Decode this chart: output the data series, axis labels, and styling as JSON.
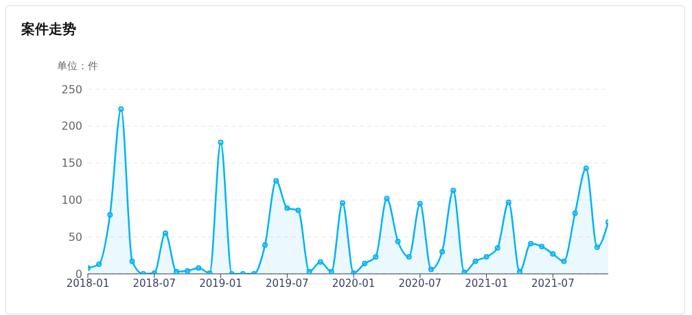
{
  "chart_data": {
    "type": "area",
    "title": "案件走势",
    "ylabel": "单位：件",
    "x": [
      "2018-01",
      "2018-02",
      "2018-03",
      "2018-04",
      "2018-05",
      "2018-06",
      "2018-07",
      "2018-08",
      "2018-09",
      "2018-10",
      "2018-11",
      "2018-12",
      "2019-01",
      "2019-02",
      "2019-03",
      "2019-04",
      "2019-05",
      "2019-06",
      "2019-07",
      "2019-08",
      "2019-09",
      "2019-10",
      "2019-11",
      "2019-12",
      "2020-01",
      "2020-02",
      "2020-03",
      "2020-04",
      "2020-05",
      "2020-06",
      "2020-07",
      "2020-08",
      "2020-09",
      "2020-10",
      "2020-11",
      "2020-12",
      "2021-01",
      "2021-02",
      "2021-03",
      "2021-04",
      "2021-05",
      "2021-06",
      "2021-07",
      "2021-08",
      "2021-09",
      "2021-10",
      "2021-11",
      "2021-12"
    ],
    "series": [
      {
        "color": "#00b2f5",
        "values": [
          8,
          13,
          80,
          223,
          17,
          0,
          1,
          55,
          3,
          4,
          8,
          1,
          178,
          0,
          0,
          0,
          39,
          126,
          89,
          86,
          3,
          16,
          3,
          96,
          1,
          14,
          23,
          102,
          44,
          23,
          95,
          6,
          30,
          113,
          2,
          17,
          23,
          35,
          97,
          3,
          41,
          37,
          27,
          17,
          82,
          143,
          36,
          70
        ]
      }
    ],
    "xlim": [
      "2018-01",
      "2021-12"
    ],
    "xticks": [
      "2018-01",
      "2018-07",
      "2019-01",
      "2019-07",
      "2020-01",
      "2020-07",
      "2021-01",
      "2021-07"
    ],
    "ylim": [
      0,
      250
    ],
    "yticks": [
      0,
      50,
      100,
      150,
      200,
      250
    ],
    "grid": "y",
    "marker": "circle",
    "legend": false
  }
}
